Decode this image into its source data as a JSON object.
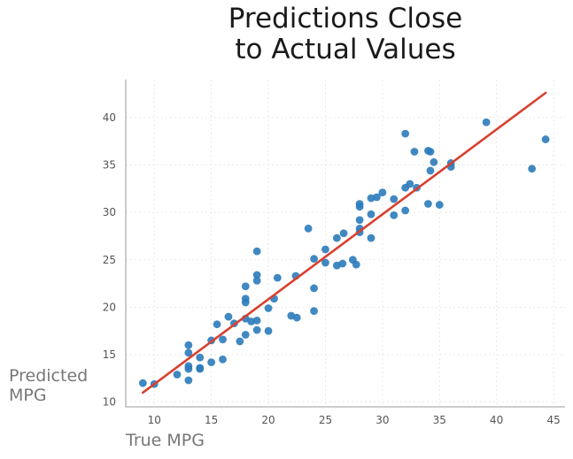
{
  "chart_data": {
    "type": "scatter",
    "title_lines": [
      "Predictions Close",
      "to Actual Values"
    ],
    "xlabel": "True MPG",
    "ylabel_lines": [
      "Predicted",
      "MPG"
    ],
    "xlim": [
      7.5,
      46
    ],
    "ylim": [
      9.5,
      44
    ],
    "x_ticks": [
      10,
      15,
      20,
      25,
      30,
      35,
      40,
      45
    ],
    "y_ticks": [
      10,
      15,
      20,
      25,
      30,
      35,
      40
    ],
    "grid": true,
    "point_color": "#2b7bba",
    "line_color": "#d9402f",
    "fit_line": {
      "x": [
        9,
        44.3
      ],
      "y": [
        11,
        42.6
      ]
    },
    "points": [
      {
        "x": 9,
        "y": 12
      },
      {
        "x": 10,
        "y": 11.9
      },
      {
        "x": 12,
        "y": 12.9
      },
      {
        "x": 13,
        "y": 12.3
      },
      {
        "x": 13,
        "y": 13.5
      },
      {
        "x": 13,
        "y": 13.8
      },
      {
        "x": 14,
        "y": 13.5
      },
      {
        "x": 14,
        "y": 13.6
      },
      {
        "x": 14,
        "y": 14.7
      },
      {
        "x": 13,
        "y": 15.2
      },
      {
        "x": 13,
        "y": 16
      },
      {
        "x": 15,
        "y": 14.2
      },
      {
        "x": 15,
        "y": 16.5
      },
      {
        "x": 16,
        "y": 14.5
      },
      {
        "x": 16,
        "y": 16.6
      },
      {
        "x": 15.5,
        "y": 18.2
      },
      {
        "x": 16.5,
        "y": 19
      },
      {
        "x": 17,
        "y": 18.3
      },
      {
        "x": 17.5,
        "y": 16.4
      },
      {
        "x": 18,
        "y": 17.1
      },
      {
        "x": 18,
        "y": 18.8
      },
      {
        "x": 18.5,
        "y": 18.5
      },
      {
        "x": 19,
        "y": 18.6
      },
      {
        "x": 19,
        "y": 17.6
      },
      {
        "x": 18,
        "y": 20.5
      },
      {
        "x": 18,
        "y": 20.9
      },
      {
        "x": 18,
        "y": 22.2
      },
      {
        "x": 19,
        "y": 22.8
      },
      {
        "x": 19,
        "y": 23.4
      },
      {
        "x": 19,
        "y": 25.9
      },
      {
        "x": 20,
        "y": 17.5
      },
      {
        "x": 20,
        "y": 19.9
      },
      {
        "x": 20.5,
        "y": 20.9
      },
      {
        "x": 20.8,
        "y": 23.1
      },
      {
        "x": 22,
        "y": 19.1
      },
      {
        "x": 22.5,
        "y": 18.9
      },
      {
        "x": 22.4,
        "y": 23.3
      },
      {
        "x": 23.5,
        "y": 28.3
      },
      {
        "x": 24,
        "y": 19.6
      },
      {
        "x": 24,
        "y": 22
      },
      {
        "x": 24,
        "y": 25.1
      },
      {
        "x": 25,
        "y": 24.7
      },
      {
        "x": 25,
        "y": 26.1
      },
      {
        "x": 26,
        "y": 24.4
      },
      {
        "x": 26.5,
        "y": 24.6
      },
      {
        "x": 26,
        "y": 27.3
      },
      {
        "x": 26.6,
        "y": 27.8
      },
      {
        "x": 27.4,
        "y": 25
      },
      {
        "x": 27.7,
        "y": 24.5
      },
      {
        "x": 28,
        "y": 27.9
      },
      {
        "x": 28,
        "y": 28.3
      },
      {
        "x": 28,
        "y": 29.2
      },
      {
        "x": 28,
        "y": 30.6
      },
      {
        "x": 28,
        "y": 30.9
      },
      {
        "x": 29,
        "y": 27.3
      },
      {
        "x": 29,
        "y": 29.8
      },
      {
        "x": 29,
        "y": 31.5
      },
      {
        "x": 29.5,
        "y": 31.6
      },
      {
        "x": 30,
        "y": 32.1
      },
      {
        "x": 31,
        "y": 29.7
      },
      {
        "x": 31,
        "y": 31.4
      },
      {
        "x": 32,
        "y": 30.2
      },
      {
        "x": 32,
        "y": 32.6
      },
      {
        "x": 32.4,
        "y": 33
      },
      {
        "x": 33,
        "y": 32.6
      },
      {
        "x": 32,
        "y": 38.3
      },
      {
        "x": 32.8,
        "y": 36.4
      },
      {
        "x": 34,
        "y": 30.9
      },
      {
        "x": 34.2,
        "y": 34.4
      },
      {
        "x": 34,
        "y": 36.5
      },
      {
        "x": 34.2,
        "y": 36.4
      },
      {
        "x": 34.5,
        "y": 35.3
      },
      {
        "x": 35,
        "y": 30.8
      },
      {
        "x": 36,
        "y": 34.8
      },
      {
        "x": 36,
        "y": 35.2
      },
      {
        "x": 39.1,
        "y": 39.5
      },
      {
        "x": 43.1,
        "y": 34.6
      },
      {
        "x": 44.3,
        "y": 37.7
      }
    ]
  }
}
